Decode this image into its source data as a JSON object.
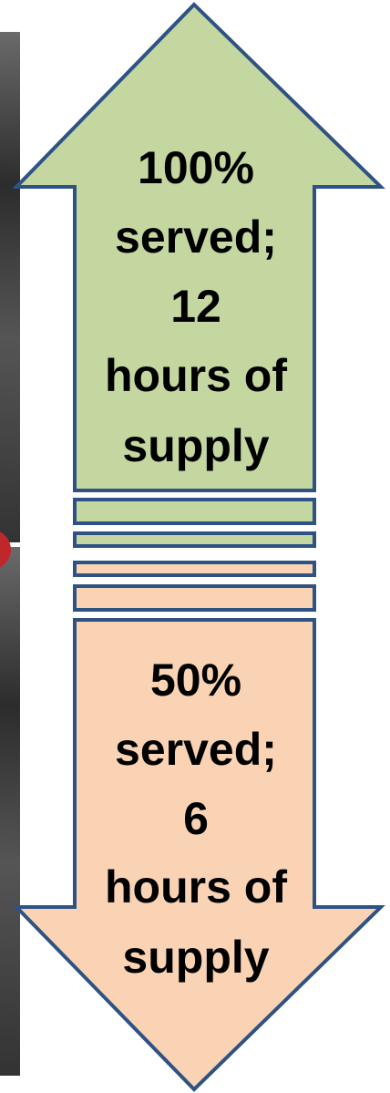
{
  "top_arrow": {
    "lines": [
      "100%",
      "served;",
      "12",
      "hours of",
      "supply"
    ]
  },
  "bottom_arrow": {
    "lines": [
      "50%",
      "served;",
      "6",
      "hours of",
      "supply"
    ]
  }
}
